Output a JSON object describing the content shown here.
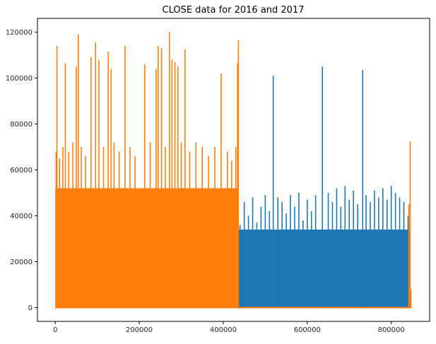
{
  "chart_data": {
    "type": "line",
    "title": "CLOSE data for 2016 and 2017",
    "xlabel": "",
    "ylabel": "",
    "xlim": [
      -42400,
      891400
    ],
    "ylim": [
      -6000,
      126000
    ],
    "x_ticks": [
      0,
      200000,
      400000,
      600000,
      800000
    ],
    "y_ticks": [
      0,
      20000,
      40000,
      60000,
      80000,
      100000,
      120000
    ],
    "x_tick_labels": [
      "0",
      "200000",
      "400000",
      "600000",
      "800000"
    ],
    "y_tick_labels": [
      "0",
      "20000",
      "40000",
      "60000",
      "80000",
      "100000",
      "120000"
    ],
    "grid": false,
    "legend": "none",
    "series": [
      {
        "color": "#1f77b4",
        "x_start": 0,
        "x_end": 845000,
        "band_from": 437000,
        "band_to": 845000,
        "band_low": 0,
        "band_fill": 34000,
        "spikes": [
          [
            440000,
            36000
          ],
          [
            450000,
            46000
          ],
          [
            460000,
            40000
          ],
          [
            470000,
            48000
          ],
          [
            480000,
            37000
          ],
          [
            490000,
            44000
          ],
          [
            500000,
            49000
          ],
          [
            510000,
            42000
          ],
          [
            519000,
            101000
          ],
          [
            530000,
            48000
          ],
          [
            540000,
            46000
          ],
          [
            550000,
            41000
          ],
          [
            560000,
            49000
          ],
          [
            570000,
            44000
          ],
          [
            580000,
            50000
          ],
          [
            590000,
            38000
          ],
          [
            600000,
            47000
          ],
          [
            610000,
            42000
          ],
          [
            620000,
            49000
          ],
          [
            636000,
            105000
          ],
          [
            650000,
            50000
          ],
          [
            660000,
            46000
          ],
          [
            670000,
            52000
          ],
          [
            680000,
            44000
          ],
          [
            690000,
            53000
          ],
          [
            700000,
            47000
          ],
          [
            710000,
            51000
          ],
          [
            720000,
            45000
          ],
          [
            732000,
            103500
          ],
          [
            740000,
            49000
          ],
          [
            750000,
            46000
          ],
          [
            760000,
            51000
          ],
          [
            770000,
            48000
          ],
          [
            780000,
            52000
          ],
          [
            790000,
            47000
          ],
          [
            800000,
            53000
          ],
          [
            810000,
            50000
          ],
          [
            820000,
            48000
          ],
          [
            830000,
            46000
          ],
          [
            840000,
            40000
          ]
        ]
      },
      {
        "color": "#ff7f0e",
        "x_start": 0,
        "x_end": 848000,
        "band_from": 0,
        "band_to": 437000,
        "band_low": 0,
        "band_fill": 52000,
        "spikes": [
          [
            2000,
            68000
          ],
          [
            4000,
            114000
          ],
          [
            10000,
            65000
          ],
          [
            18000,
            70000
          ],
          [
            24000,
            106500
          ],
          [
            32000,
            68000
          ],
          [
            42000,
            72000
          ],
          [
            50000,
            105000
          ],
          [
            55000,
            119000
          ],
          [
            62000,
            70000
          ],
          [
            72000,
            66000
          ],
          [
            85000,
            109000
          ],
          [
            96000,
            115500
          ],
          [
            104000,
            108000
          ],
          [
            115000,
            70000
          ],
          [
            126000,
            111500
          ],
          [
            133000,
            104000
          ],
          [
            140000,
            72000
          ],
          [
            152000,
            68000
          ],
          [
            166000,
            114000
          ],
          [
            178000,
            70000
          ],
          [
            190000,
            66000
          ],
          [
            213000,
            106000
          ],
          [
            226000,
            72000
          ],
          [
            240000,
            104000
          ],
          [
            245000,
            114000
          ],
          [
            253000,
            113000
          ],
          [
            262000,
            70000
          ],
          [
            272000,
            120000
          ],
          [
            278000,
            108000
          ],
          [
            285000,
            107000
          ],
          [
            292000,
            105000
          ],
          [
            300000,
            72000
          ],
          [
            309000,
            112500
          ],
          [
            320000,
            68000
          ],
          [
            335000,
            72000
          ],
          [
            350000,
            70000
          ],
          [
            365000,
            66000
          ],
          [
            380000,
            70000
          ],
          [
            395000,
            102000
          ],
          [
            410000,
            68000
          ],
          [
            420000,
            64000
          ],
          [
            430000,
            70000
          ],
          [
            434000,
            106500
          ],
          [
            436000,
            116500
          ],
          [
            842000,
            45000
          ],
          [
            845000,
            72500
          ],
          [
            847000,
            8000
          ]
        ]
      }
    ]
  }
}
